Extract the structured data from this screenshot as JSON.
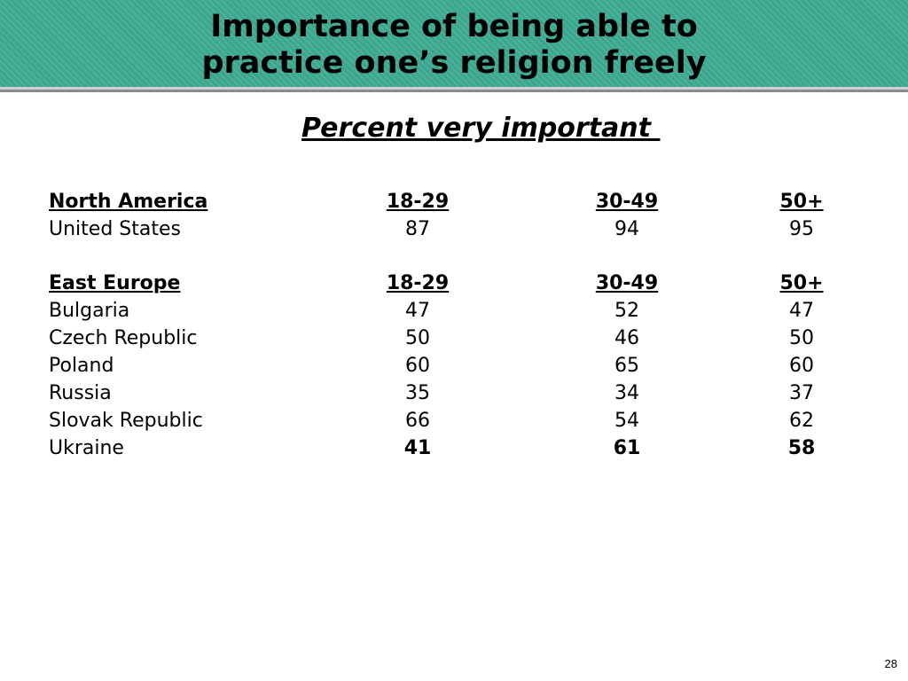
{
  "slide": {
    "title_line1": "Importance of being able to",
    "title_line2": "practice one’s religion freely",
    "subtitle": "Percent very important ",
    "page_number": "28",
    "colors": {
      "header_bg": "#3aa68e",
      "header_rule": "#8a8a8a"
    }
  },
  "sections": [
    {
      "region": "North America",
      "columns": [
        "18-29",
        "30-49",
        "50+"
      ],
      "rows": [
        {
          "country": "United States",
          "values": [
            "87",
            "94",
            "95"
          ],
          "bold": false
        }
      ]
    },
    {
      "region": "East Europe",
      "columns": [
        "18-29",
        "30-49",
        "50+"
      ],
      "rows": [
        {
          "country": "Bulgaria",
          "values": [
            "47",
            "52",
            "47"
          ],
          "bold": false
        },
        {
          "country": "Czech Republic",
          "values": [
            "50",
            "46",
            "50"
          ],
          "bold": false
        },
        {
          "country": "Poland",
          "values": [
            "60",
            "65",
            "60"
          ],
          "bold": false
        },
        {
          "country": "Russia",
          "values": [
            "35",
            "34",
            "37"
          ],
          "bold": false
        },
        {
          "country": "Slovak Republic",
          "values": [
            "66",
            "54",
            "62"
          ],
          "bold": false
        },
        {
          "country": "Ukraine",
          "values": [
            "41",
            "61",
            "58"
          ],
          "bold": true
        }
      ]
    }
  ]
}
